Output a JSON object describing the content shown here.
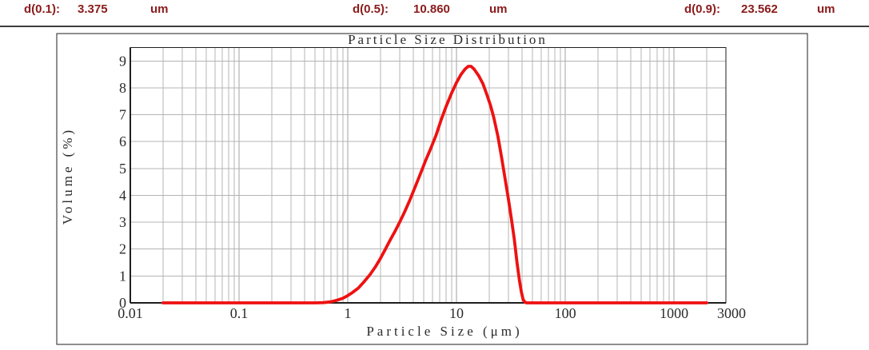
{
  "stats": [
    {
      "label": "d(0.1):",
      "value": "3.375",
      "unit": "um"
    },
    {
      "label": "d(0.5):",
      "value": "10.860",
      "unit": "um"
    },
    {
      "label": "d(0.9):",
      "value": "23.562",
      "unit": "um"
    }
  ],
  "colors": {
    "stat_text": "#8b1a1a",
    "curve": "#ee1111",
    "grid_minor": "#b4b4b4",
    "grid_major": "#a0a0a0",
    "axis": "#1f1f1f",
    "frame": "#1f1f1f",
    "rule": "#3d3d3d"
  },
  "chart_data": {
    "type": "line",
    "title": "Particle Size Distribution",
    "xlabel": "Particle Size (μm)",
    "ylabel": "Volume (%)",
    "x_scale": "log",
    "xlim": [
      0.01,
      3000
    ],
    "ylim": [
      0,
      9.5
    ],
    "y_ticks": [
      0,
      1,
      2,
      3,
      4,
      5,
      6,
      7,
      8,
      9
    ],
    "x_ticks": [
      0.01,
      0.1,
      1,
      10,
      100,
      1000,
      3000
    ],
    "grid": true,
    "legend": false,
    "series": [
      {
        "name": "volume",
        "points": [
          [
            0.02,
            0
          ],
          [
            0.05,
            0
          ],
          [
            0.1,
            0
          ],
          [
            0.2,
            0
          ],
          [
            0.3,
            0
          ],
          [
            0.4,
            0
          ],
          [
            0.5,
            0
          ],
          [
            0.6,
            0.01
          ],
          [
            0.7,
            0.04
          ],
          [
            0.8,
            0.1
          ],
          [
            0.9,
            0.17
          ],
          [
            1.0,
            0.27
          ],
          [
            1.1,
            0.38
          ],
          [
            1.25,
            0.55
          ],
          [
            1.4,
            0.77
          ],
          [
            1.6,
            1.05
          ],
          [
            1.8,
            1.35
          ],
          [
            2.0,
            1.66
          ],
          [
            2.2,
            1.97
          ],
          [
            2.4,
            2.27
          ],
          [
            2.7,
            2.64
          ],
          [
            3.0,
            3.0
          ],
          [
            3.3,
            3.35
          ],
          [
            3.7,
            3.8
          ],
          [
            4.2,
            4.35
          ],
          [
            4.7,
            4.85
          ],
          [
            5.2,
            5.3
          ],
          [
            5.8,
            5.75
          ],
          [
            6.5,
            6.25
          ],
          [
            7.2,
            6.8
          ],
          [
            8.0,
            7.3
          ],
          [
            9.0,
            7.8
          ],
          [
            10.0,
            8.2
          ],
          [
            11.0,
            8.5
          ],
          [
            12.0,
            8.7
          ],
          [
            12.8,
            8.8
          ],
          [
            13.6,
            8.8
          ],
          [
            14.5,
            8.7
          ],
          [
            16.0,
            8.45
          ],
          [
            17.5,
            8.15
          ],
          [
            19.0,
            7.75
          ],
          [
            20.5,
            7.35
          ],
          [
            22.0,
            6.9
          ],
          [
            24.0,
            6.2
          ],
          [
            26.0,
            5.4
          ],
          [
            28.0,
            4.6
          ],
          [
            30.0,
            3.85
          ],
          [
            32.0,
            3.1
          ],
          [
            34.0,
            2.35
          ],
          [
            36.0,
            1.5
          ],
          [
            38.0,
            0.8
          ],
          [
            39.5,
            0.4
          ],
          [
            41.0,
            0.12
          ],
          [
            42.5,
            0.03
          ],
          [
            44.0,
            0
          ],
          [
            50,
            0
          ],
          [
            100,
            0
          ],
          [
            300,
            0
          ],
          [
            1000,
            0
          ],
          [
            2000,
            0
          ]
        ]
      }
    ]
  }
}
